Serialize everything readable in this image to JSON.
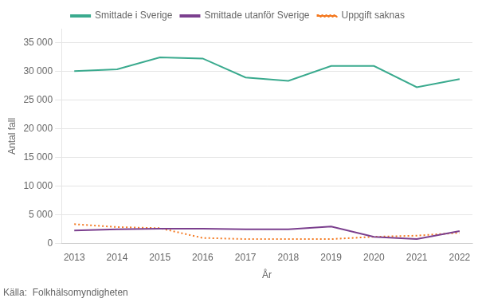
{
  "chart_data": {
    "type": "line",
    "x": [
      2013,
      2014,
      2015,
      2016,
      2017,
      2018,
      2019,
      2020,
      2021,
      2022
    ],
    "series": [
      {
        "name": "Smittade i Sverige",
        "color": "#3aaa8e",
        "line_style": "solid",
        "values": [
          30100,
          30400,
          32500,
          32300,
          29000,
          28400,
          31000,
          31000,
          27300,
          28700
        ]
      },
      {
        "name": "Smittade utanför Sverige",
        "color": "#7b3f8e",
        "line_style": "solid",
        "values": [
          2300,
          2500,
          2600,
          2600,
          2500,
          2500,
          3000,
          1200,
          800,
          2200
        ]
      },
      {
        "name": "Uppgift saknas",
        "color": "#f47920",
        "line_style": "dotted",
        "values": [
          3400,
          2900,
          2700,
          1000,
          800,
          800,
          800,
          1200,
          1400,
          1900
        ]
      }
    ],
    "ylabel": "Antal fall",
    "xlabel": "År",
    "source": "Källa:  Folkhälsomyndigheten",
    "xlim": [
      2012.7,
      2022.3
    ],
    "xticks": [
      2013,
      2014,
      2015,
      2016,
      2017,
      2018,
      2019,
      2020,
      2021,
      2022
    ],
    "ylim": [
      0,
      37500
    ],
    "yticks": [
      0,
      {
        "value": 5000,
        "label": "5 000"
      },
      {
        "value": 10000,
        "label": "10 000"
      },
      {
        "value": 15000,
        "label": "15 000"
      },
      {
        "value": 20000,
        "label": "20 000"
      },
      {
        "value": 25000,
        "label": "25 000"
      },
      {
        "value": 30000,
        "label": "30 000"
      },
      {
        "value": 35000,
        "label": "35 000"
      }
    ],
    "grid": "y",
    "legend": "top"
  }
}
